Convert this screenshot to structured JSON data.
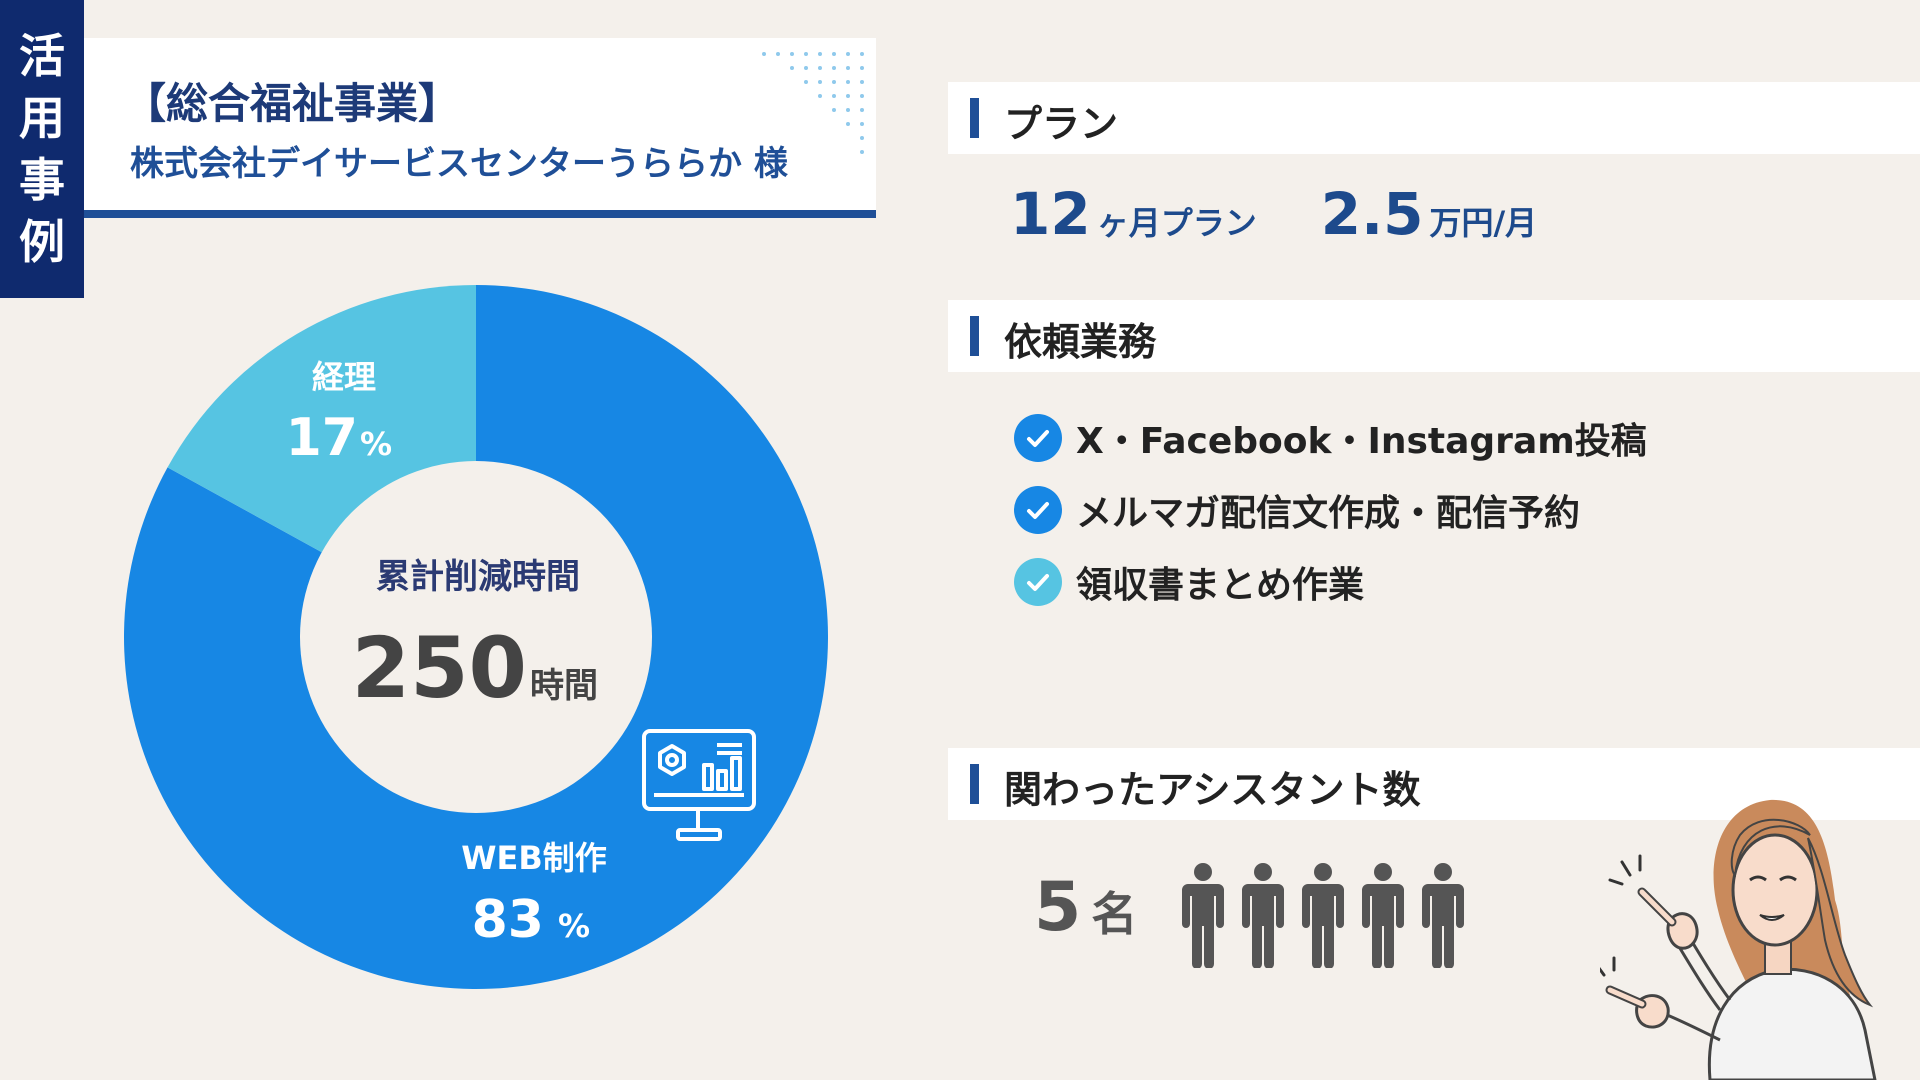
{
  "side_tag": [
    "活",
    "用",
    "事",
    "例"
  ],
  "title": {
    "line1": "【総合福祉事業】",
    "line2": "株式会社デイサービスセンターうららか 様"
  },
  "chart_data": {
    "type": "pie",
    "variant": "donut",
    "categories": [
      "WEB制作",
      "経理"
    ],
    "values": [
      83,
      17
    ],
    "colors": [
      "#1787e4",
      "#56c4e2"
    ],
    "center_label": "累計削減時間",
    "center_value": "250",
    "center_unit": "時間",
    "slice_labels": [
      {
        "name": "WEB制作",
        "value": "83",
        "unit": "%"
      },
      {
        "name": "経理",
        "value": "17",
        "unit": "%"
      }
    ],
    "icon": "monitor-analytics-icon"
  },
  "plan": {
    "header": "プラン",
    "months": "12",
    "months_unit": "ヶ月プラン",
    "price": "2.5",
    "price_unit": "万円/月"
  },
  "tasks": {
    "header": "依頼業務",
    "items": [
      {
        "label": "X・Facebook・Instagram投稿",
        "check_color": "#1787e4"
      },
      {
        "label": "メルマガ配信文作成・配信予約",
        "check_color": "#1787e4"
      },
      {
        "label": "領収書まとめ作業",
        "check_color": "#56c4e2"
      }
    ]
  },
  "assistants": {
    "header": "関わったアシスタント数",
    "count": "5",
    "unit": "名",
    "icon": "person-icon"
  },
  "colors": {
    "navy": "#0f2a6e",
    "accent": "#1f4f97",
    "background": "#f4f0eb"
  }
}
